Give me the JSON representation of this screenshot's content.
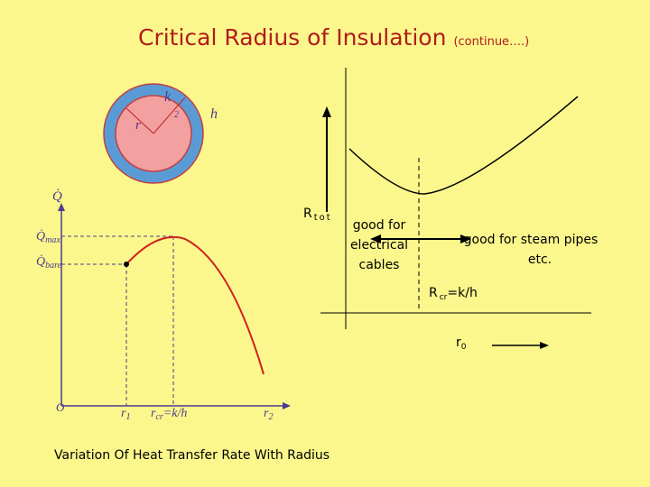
{
  "title": "Critical Radius of Insulation",
  "title_note": "(continue….)",
  "insulation_figure": {
    "conductivity": "k",
    "radius": "r",
    "radius_subscript": "2",
    "convection": "h"
  },
  "heat_rate_graph": {
    "y_axis": "Q̇",
    "q_max": {
      "symbol": "Q̇",
      "subscript": "max"
    },
    "q_bare": {
      "symbol": "Q̇",
      "subscript": "bare"
    },
    "origin": "O",
    "r1": {
      "symbol": "r",
      "subscript": "1"
    },
    "r_cr": {
      "symbol": "r",
      "subscript": "cr",
      "rest": "=k/h"
    },
    "r2": {
      "symbol": "r",
      "subscript": "2"
    },
    "caption": "Variation Of Heat Transfer Rate With Radius"
  },
  "resistance_graph": {
    "y_axis": {
      "symbol": "R",
      "subscript": "tot"
    },
    "left_region": [
      "good for",
      "electrical",
      "cables"
    ],
    "right_region": [
      "good for steam pipes",
      "etc."
    ],
    "critical": {
      "symbol": "R",
      "subscript": "cr",
      "rest": "=k/h"
    },
    "x_axis": {
      "symbol": "r",
      "subscript": "0"
    }
  }
}
